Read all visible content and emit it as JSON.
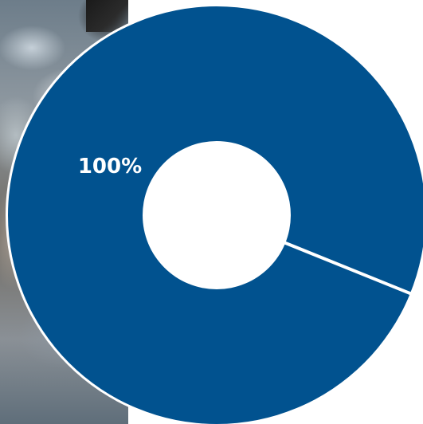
{
  "chart_data": {
    "type": "pie",
    "donut": true,
    "categories": [
      ""
    ],
    "values": [
      100
    ],
    "data_labels": [
      "100%"
    ],
    "colors": [
      "#01528f"
    ],
    "title": "",
    "legend": "none"
  },
  "theme": {
    "slice_color": "#01528f",
    "separator_color": "#ffffff",
    "hole_color": "#ffffff"
  }
}
